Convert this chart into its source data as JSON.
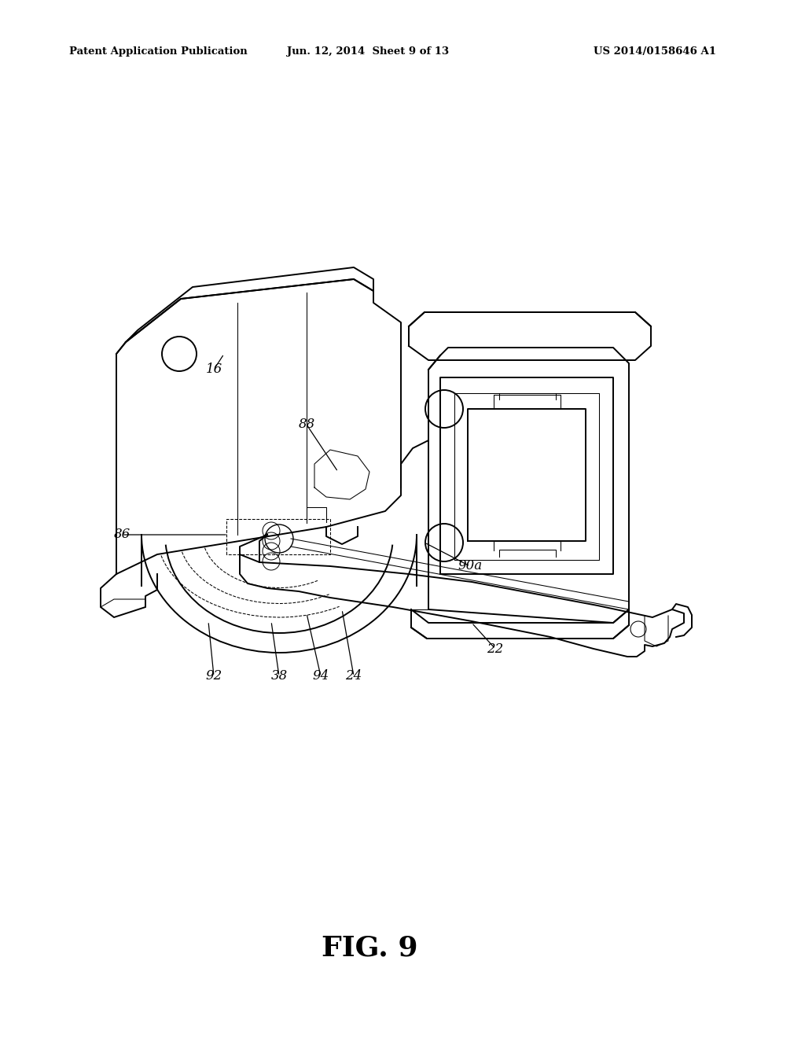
{
  "background_color": "#ffffff",
  "header_left": "Patent Application Publication",
  "header_center": "Jun. 12, 2014  Sheet 9 of 13",
  "header_right": "US 2014/0158646 A1",
  "figure_label": "FIG. 9",
  "line_color": "#000000",
  "lw_main": 1.4,
  "lw_thin": 0.75,
  "lw_med": 1.0
}
